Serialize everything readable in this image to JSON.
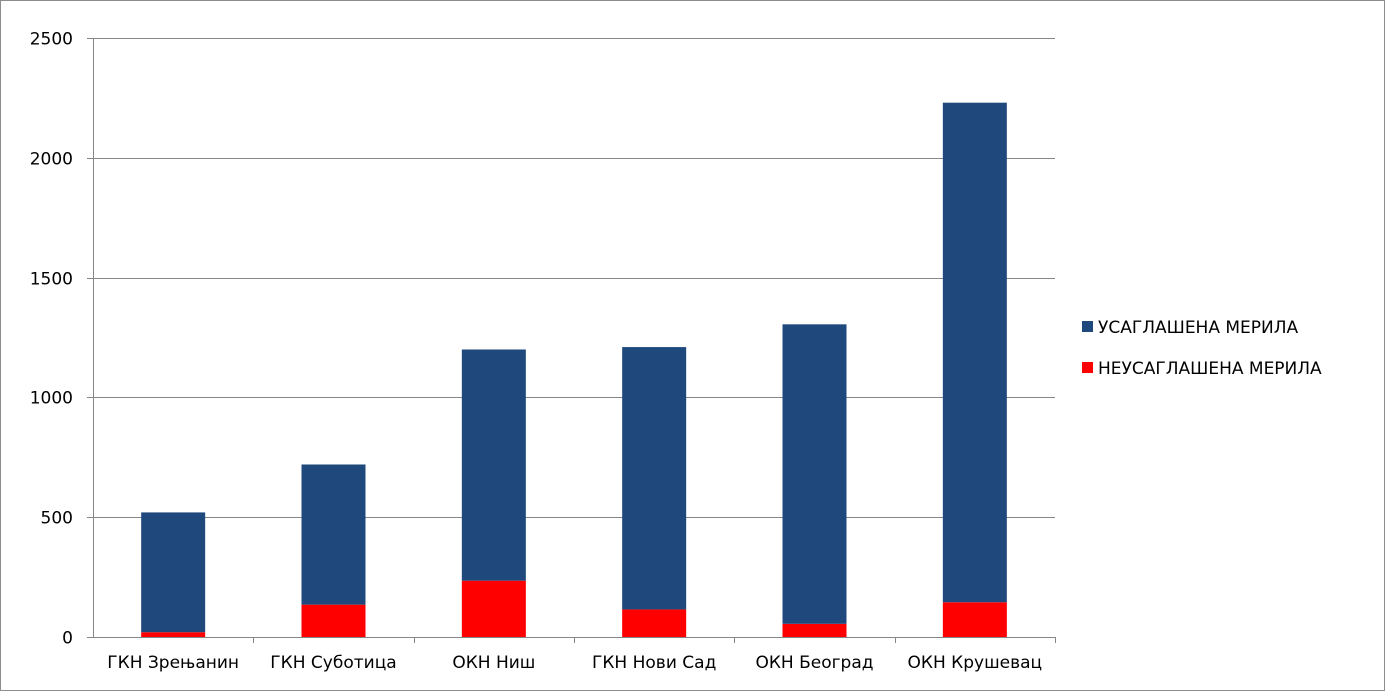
{
  "chart_data": {
    "type": "bar",
    "stacked": true,
    "title": "",
    "xlabel": "",
    "ylabel": "",
    "ylim": [
      0,
      2500
    ],
    "yticks": [
      0,
      500,
      1000,
      1500,
      2000,
      2500
    ],
    "ytick_labels": [
      "0",
      "500",
      "1000",
      "1500",
      "2000",
      "2500"
    ],
    "grid": true,
    "legend_position": "right",
    "categories": [
      "ГКН Зрењанин",
      "ГКН Суботица",
      "ОКН Ниш",
      "ГКН Нови Сад",
      "ОКН Београд",
      "ОКН Крушевац"
    ],
    "series": [
      {
        "name": "НЕУСАГЛАШЕНА МЕРИЛА",
        "color": "#ff0000",
        "values": [
          20,
          135,
          235,
          115,
          55,
          145
        ]
      },
      {
        "name": "УСАГЛАШЕНА МЕРИЛА",
        "color": "#1f497d",
        "values": [
          500,
          585,
          965,
          1095,
          1250,
          2085
        ]
      }
    ],
    "legend_order": [
      "УСАГЛАШЕНА МЕРИЛА",
      "НЕУСАГЛАШЕНА МЕРИЛА"
    ]
  }
}
